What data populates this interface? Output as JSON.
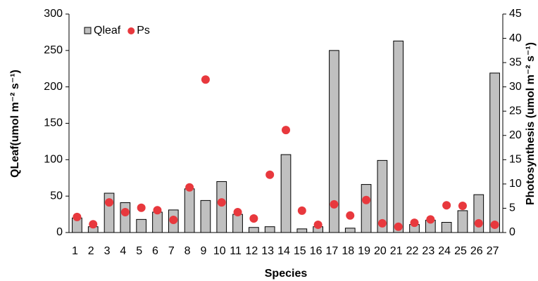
{
  "chart_data": {
    "type": "bar",
    "xlabel": "Species",
    "ylabel": "QLeaf(umol m⁻² s⁻¹)",
    "y2label": "Photosynthesis (umol m⁻² s⁻¹)",
    "categories": [
      "1",
      "2",
      "3",
      "4",
      "5",
      "6",
      "7",
      "8",
      "9",
      "10",
      "11",
      "12",
      "13",
      "14",
      "15",
      "16",
      "17",
      "18",
      "19",
      "20",
      "21",
      "22",
      "23",
      "24",
      "25",
      "26",
      "27"
    ],
    "series": [
      {
        "name": "Qleaf",
        "type": "bar",
        "color": "#c0c0c0",
        "values": [
          20,
          8,
          54,
          41,
          18,
          28,
          31,
          60,
          44,
          70,
          25,
          7,
          8,
          107,
          5,
          8,
          250,
          6,
          66,
          99,
          263,
          11,
          17,
          14,
          30,
          52,
          219
        ]
      },
      {
        "name": "Ps",
        "type": "scatter",
        "color": "#e8383d",
        "axis": "y2",
        "values": [
          3.2,
          1.7,
          6.2,
          4.2,
          5.1,
          4.6,
          2.6,
          9.3,
          31.5,
          6.2,
          4.2,
          2.9,
          11.9,
          21.1,
          4.5,
          1.6,
          5.8,
          3.5,
          6.7,
          1.9,
          1.2,
          2.0,
          2.7,
          5.6,
          5.5,
          1.9,
          1.6
        ]
      }
    ],
    "ylim": [
      0,
      300
    ],
    "yticks": [
      0,
      50,
      100,
      150,
      200,
      250,
      300
    ],
    "y2lim": [
      0,
      45
    ],
    "y2ticks": [
      0,
      5,
      10,
      15,
      20,
      25,
      30,
      35,
      40,
      45
    ],
    "legend": "upper left",
    "grid": false
  }
}
